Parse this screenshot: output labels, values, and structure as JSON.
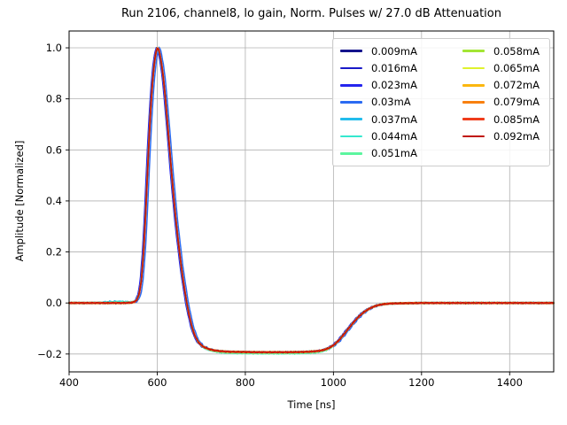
{
  "chart_data": {
    "type": "line",
    "title": "Run 2106, channel8, lo gain, Norm. Pulses w/ 27.0 dB Attenuation",
    "xlabel": "Time [ns]",
    "ylabel": "Amplitude [Normalized]",
    "xlim": [
      400,
      1500
    ],
    "ylim": [
      -0.27,
      1.066
    ],
    "xticks": [
      400,
      600,
      800,
      1000,
      1200,
      1400
    ],
    "yticks": [
      1.0,
      0.8,
      0.6,
      0.4,
      0.2,
      0.0,
      -0.2
    ],
    "grid": true,
    "grid_color": "#b0b0b0",
    "spine_color": "#000000",
    "legend": {
      "position": "upper right",
      "columns": 2,
      "rows": 7,
      "border_color": "#cccccc"
    },
    "pulse_keypoints": [
      [
        400,
        0
      ],
      [
        460,
        0
      ],
      [
        520,
        0
      ],
      [
        540,
        0.001
      ],
      [
        548,
        0.004
      ],
      [
        554,
        0.013
      ],
      [
        559,
        0.035
      ],
      [
        564,
        0.09
      ],
      [
        569,
        0.2
      ],
      [
        573,
        0.33
      ],
      [
        577,
        0.48
      ],
      [
        581,
        0.63
      ],
      [
        585,
        0.76
      ],
      [
        589,
        0.86
      ],
      [
        593,
        0.935
      ],
      [
        596,
        0.972
      ],
      [
        598,
        0.988
      ],
      [
        600,
        1.0
      ],
      [
        603,
        0.995
      ],
      [
        606,
        0.975
      ],
      [
        610,
        0.935
      ],
      [
        614,
        0.88
      ],
      [
        618,
        0.81
      ],
      [
        622,
        0.73
      ],
      [
        627,
        0.625
      ],
      [
        632,
        0.52
      ],
      [
        637,
        0.42
      ],
      [
        642,
        0.33
      ],
      [
        648,
        0.235
      ],
      [
        654,
        0.15
      ],
      [
        660,
        0.075
      ],
      [
        666,
        0.01
      ],
      [
        672,
        -0.045
      ],
      [
        679,
        -0.095
      ],
      [
        686,
        -0.131
      ],
      [
        694,
        -0.155
      ],
      [
        703,
        -0.17
      ],
      [
        714,
        -0.179
      ],
      [
        727,
        -0.185
      ],
      [
        743,
        -0.189
      ],
      [
        762,
        -0.191
      ],
      [
        790,
        -0.192
      ],
      [
        830,
        -0.193
      ],
      [
        880,
        -0.193
      ],
      [
        920,
        -0.1925
      ],
      [
        945,
        -0.191
      ],
      [
        962,
        -0.189
      ],
      [
        976,
        -0.185
      ],
      [
        988,
        -0.178
      ],
      [
        1000,
        -0.166
      ],
      [
        1012,
        -0.147
      ],
      [
        1024,
        -0.122
      ],
      [
        1036,
        -0.096
      ],
      [
        1048,
        -0.071
      ],
      [
        1060,
        -0.049
      ],
      [
        1072,
        -0.032
      ],
      [
        1085,
        -0.019
      ],
      [
        1098,
        -0.01
      ],
      [
        1112,
        -0.005
      ],
      [
        1130,
        -0.002
      ],
      [
        1160,
        -0.001
      ],
      [
        1200,
        0
      ],
      [
        1350,
        0
      ],
      [
        1500,
        0
      ]
    ],
    "series": [
      {
        "name": "0.009mA",
        "color": "#14148c",
        "dt": -2.0,
        "seed": 1
      },
      {
        "name": "0.016mA",
        "color": "#1a1ac8",
        "dt": -1.5,
        "seed": 2
      },
      {
        "name": "0.023mA",
        "color": "#2525ee",
        "dt": -2.5,
        "seed": 3
      },
      {
        "name": "0.03mA",
        "color": "#2b6bf2",
        "dt": 4.0,
        "seed": 4
      },
      {
        "name": "0.037mA",
        "color": "#22bcec",
        "dt": 0.5,
        "seed": 5,
        "bump": {
          "c": 505,
          "s": 35,
          "a": 0.006
        }
      },
      {
        "name": "0.044mA",
        "color": "#35e8ce",
        "dt": 0.0,
        "seed": 6,
        "bump": {
          "c": 515,
          "s": 30,
          "a": 0.005
        },
        "du": -0.004
      },
      {
        "name": "0.051mA",
        "color": "#5cf59f",
        "dt": 0.5,
        "seed": 7,
        "du": -0.005
      },
      {
        "name": "0.058mA",
        "color": "#a3e534",
        "dt": -0.5,
        "seed": 8
      },
      {
        "name": "0.065mA",
        "color": "#dff22d",
        "dt": 0.0,
        "seed": 9
      },
      {
        "name": "0.072mA",
        "color": "#fbb70f",
        "dt": 0.5,
        "seed": 10
      },
      {
        "name": "0.079mA",
        "color": "#f8800f",
        "dt": 0.0,
        "seed": 11
      },
      {
        "name": "0.085mA",
        "color": "#ef3c1b",
        "dt": 0.5,
        "seed": 12
      },
      {
        "name": "0.092mA",
        "color": "#c01509",
        "dt": 0.0,
        "seed": 13
      }
    ]
  }
}
